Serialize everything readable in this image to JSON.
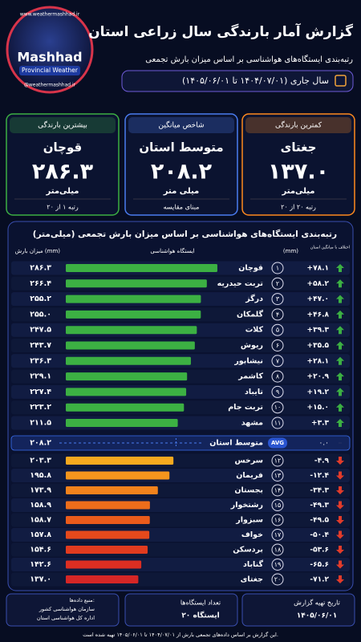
{
  "header": {
    "title": "گزارش آمار بارندگی سال زراعی استان",
    "subtitle": "رتبه‌بندی ایستگاه‌های هواشناسی بر اساس میزان بارش تجمعی",
    "period": "سال جاری (۱۴۰۴/۰۷/۰۱ تا ۱۴۰۵/۰۶/۰۱)",
    "logo": {
      "url": "www.weathermashhad.ir",
      "name": "Mashhad",
      "tagline": "Provincial Weather",
      "handle": "@weathermashhad.ir"
    }
  },
  "cards": [
    {
      "label": "کمترین بارندگی",
      "station": "جغتای",
      "value": "۱۳۷.۰",
      "unit": "میلی‌متر",
      "note": "رتبه ۲۰ از ۲۰"
    },
    {
      "label": "شاخص میانگین",
      "station": "متوسط استان",
      "value": "۲۰۸.۲",
      "unit": "میلی متر",
      "note": "مبنای مقایسه"
    },
    {
      "label": "بیشترین بارندگی",
      "station": "قوچان",
      "value": "۲۸۶.۳",
      "unit": "میلی‌متر",
      "note": "رتبه ۱ از ۲۰"
    }
  ],
  "chart_data": {
    "type": "bar",
    "title": "رتبه‌بندی ایستگاه‌های هواشناسی بر اساس میزان بارش تجمعی (میلی‌متر)",
    "column_headers": {
      "difference": "اختلاف با میانگین استان",
      "difference_unit": "(mm)",
      "station": "ایستگاه هواشناسی",
      "value": "میزان بارش (mm)"
    },
    "categories": [
      "قوچان",
      "تربت حیدریه",
      "درگز",
      "گلمکان",
      "کلات",
      "ریوش",
      "نیشابور",
      "کاشمر",
      "تایباد",
      "تربت جام",
      "مشهد",
      "سرخس",
      "فریمان",
      "بجستان",
      "رشتخوار",
      "سبزوار",
      "خواف",
      "بردسکن",
      "گناباد",
      "جغتای"
    ],
    "ranks": [
      "۱",
      "۲",
      "۳",
      "۴",
      "۵",
      "۶",
      "۷",
      "۸",
      "۹",
      "۱۰",
      "۱۱",
      "۱۲",
      "۱۳",
      "۱۴",
      "۱۵",
      "۱۶",
      "۱۷",
      "۱۸",
      "۱۹",
      "۲۰"
    ],
    "values": [
      286.3,
      266.4,
      255.2,
      255.0,
      247.5,
      243.7,
      236.3,
      229.1,
      227.4,
      223.2,
      211.5,
      203.3,
      195.8,
      173.9,
      158.9,
      158.7,
      157.8,
      154.6,
      142.6,
      137.0
    ],
    "value_labels": [
      "۲۸۶.۳",
      "۲۶۶.۴",
      "۲۵۵.۲",
      "۲۵۵.۰",
      "۲۴۷.۵",
      "۲۴۳.۷",
      "۲۳۶.۳",
      "۲۲۹.۱",
      "۲۲۷.۴",
      "۲۲۳.۲",
      "۲۱۱.۵",
      "۲۰۳.۳",
      "۱۹۵.۸",
      "۱۷۳.۹",
      "۱۵۸.۹",
      "۱۵۸.۷",
      "۱۵۷.۸",
      "۱۵۴.۶",
      "۱۴۲.۶",
      "۱۳۷.۰"
    ],
    "colors": [
      "#3cb043",
      "#3cb043",
      "#3cb043",
      "#3cb043",
      "#3cb043",
      "#3cb043",
      "#3cb043",
      "#3cb043",
      "#3cb043",
      "#3cb043",
      "#3cb043",
      "#f7a91f",
      "#f5951d",
      "#f2821c",
      "#ee6d1b",
      "#ea5b1b",
      "#e6491c",
      "#e23b1f",
      "#dc2e22",
      "#d52626"
    ],
    "differences": {
      "values": [
        78.1,
        58.2,
        47.0,
        46.8,
        39.3,
        35.5,
        28.1,
        20.9,
        19.2,
        15.0,
        3.3,
        -4.9,
        -12.4,
        -34.3,
        -49.3,
        -49.5,
        -50.4,
        -53.6,
        -65.6,
        -71.2
      ],
      "value_labels": [
        "+۷۸.۱",
        "+۵۸.۲",
        "+۴۷.۰",
        "+۴۶.۸",
        "+۳۹.۳",
        "+۳۵.۵",
        "+۲۸.۱",
        "+۲۰.۹",
        "+۱۹.۲",
        "+۱۵.۰",
        "+۳.۳",
        "-۴.۹",
        "-۱۲.۴",
        "-۳۴.۳",
        "-۴۹.۳",
        "-۴۹.۵",
        "-۵۰.۴",
        "-۵۳.۶",
        "-۶۵.۶",
        "-۷۱.۲"
      ]
    },
    "average": {
      "label": "متوسط استان",
      "tag": "AVG",
      "value": 208.2,
      "value_label": "۲۰۸.۲",
      "difference": 0,
      "difference_label": "۰.۰"
    }
  },
  "footer": {
    "source_title": "منبع داده‌ها:",
    "source_lines": [
      "سازمان هواشناسی کشور",
      "اداره کل هواشناسی استان"
    ],
    "stations_title": "تعداد ایستگاه‌ها",
    "stations_value": "۲۰ ایستگاه",
    "date_title": "تاریخ تهیه گزارش",
    "date_value": "۱۴۰۵/۰۶/۰۱",
    "note": "این گزارش بر اساس داده‌های تجمعی بارش از ۱۴۰۴/۰۷/۰۱ تا ۱۴۰۵/۰۶/۰۱ تهیه شده است."
  }
}
